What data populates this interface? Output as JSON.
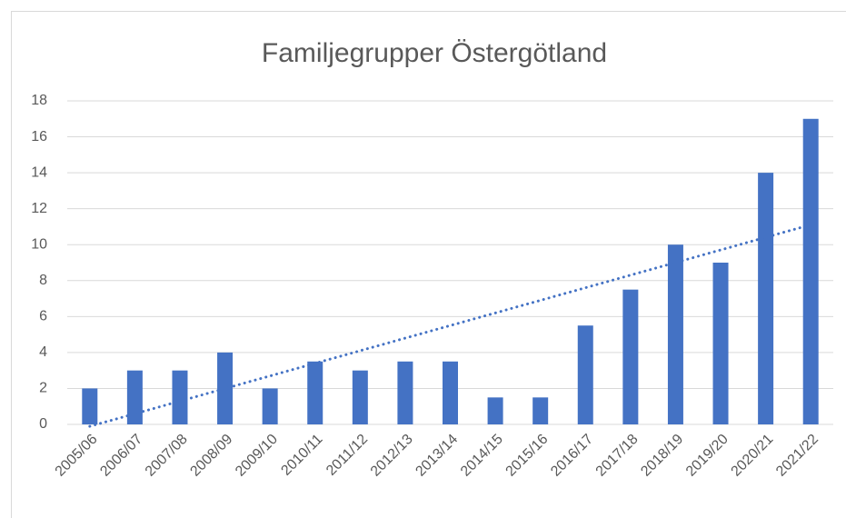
{
  "chart_data": {
    "type": "bar",
    "title": "Familjegrupper Östergötland",
    "categories": [
      "2005/06",
      "2006/07",
      "2007/08",
      "2008/09",
      "2009/10",
      "2010/11",
      "2011/12",
      "2012/13",
      "2013/14",
      "2014/15",
      "2015/16",
      "2016/17",
      "2017/18",
      "2018/19",
      "2019/20",
      "2020/21",
      "2021/22"
    ],
    "values": [
      2,
      3,
      3,
      4,
      2,
      3.5,
      3,
      3.5,
      3.5,
      1.5,
      1.5,
      5.5,
      7.5,
      10,
      9,
      14,
      17
    ],
    "color": "#4472c4",
    "ylim": [
      0,
      18
    ],
    "yticks": [
      0,
      2,
      4,
      6,
      8,
      10,
      12,
      14,
      16,
      18
    ],
    "grid": true,
    "trendline": "linear"
  }
}
